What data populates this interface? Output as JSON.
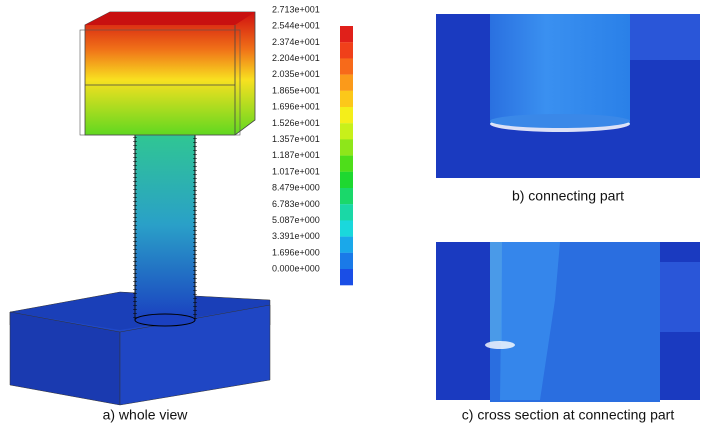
{
  "legend": {
    "labels": [
      "2.713e+001",
      "2.544e+001",
      "2.374e+001",
      "2.204e+001",
      "2.035e+001",
      "1.865e+001",
      "1.696e+001",
      "1.526e+001",
      "1.357e+001",
      "1.187e+001",
      "1.017e+001",
      "8.479e+000",
      "6.783e+000",
      "5.087e+000",
      "3.391e+000",
      "1.696e+000",
      "0.000e+000"
    ],
    "colors": [
      "#e0201a",
      "#f0401a",
      "#f76a1a",
      "#fb9a1a",
      "#fcc81a",
      "#f4ee1a",
      "#c8f01a",
      "#8ee61a",
      "#4ede1a",
      "#1ed830",
      "#1ad86a",
      "#1ad8a6",
      "#1ad8dc",
      "#1aa8ea",
      "#1a7ae8",
      "#1a4ee6"
    ]
  },
  "captions": {
    "a": "a) whole view",
    "b": "b) connecting part",
    "c": "c) cross section at connecting part"
  }
}
